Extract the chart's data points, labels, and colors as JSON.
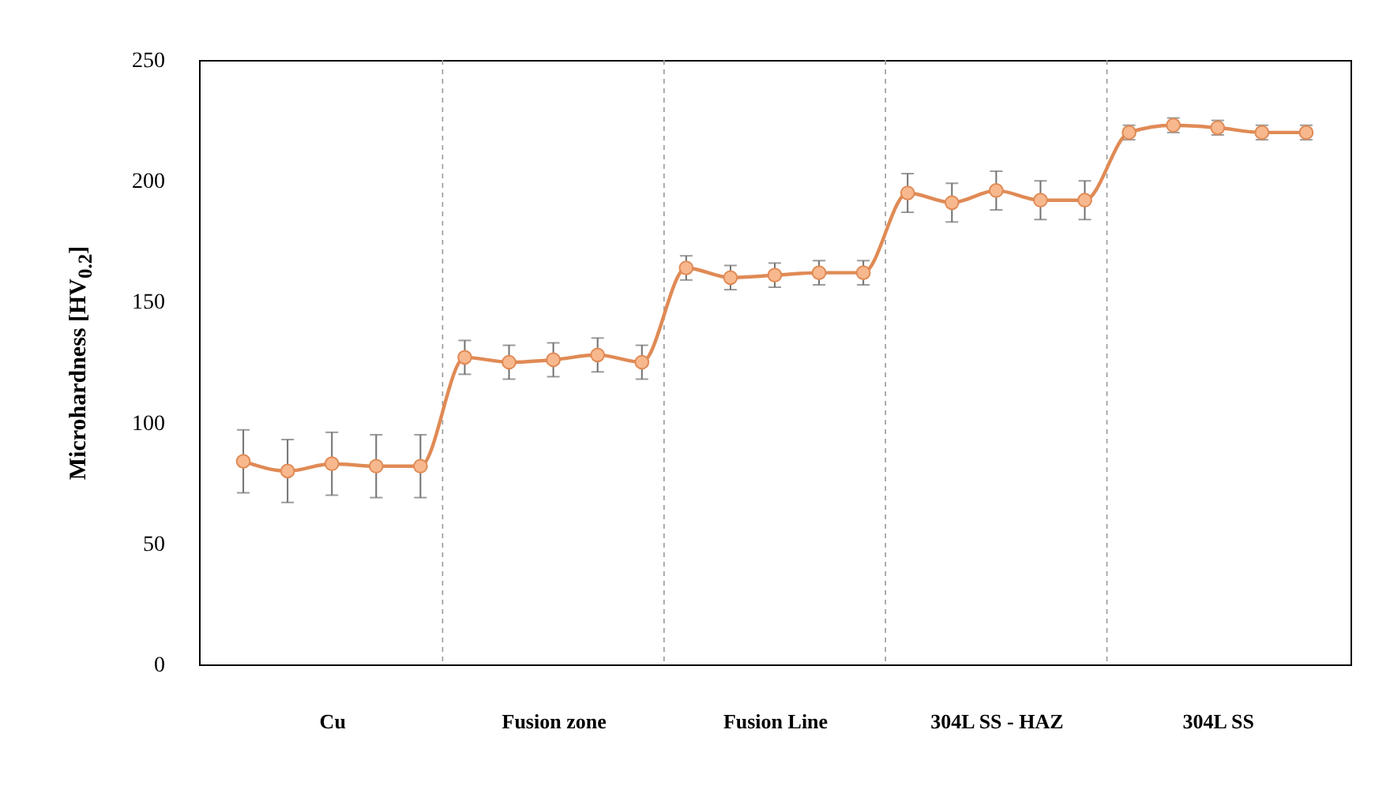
{
  "chart_data": {
    "type": "line",
    "ylabel": "Microhardness [HV$_{0.2}$]",
    "categories": [
      null,
      null,
      "Cu",
      null,
      null,
      null,
      null,
      "Fusion zone",
      null,
      null,
      null,
      null,
      "Fusion Line",
      null,
      null,
      null,
      null,
      "304L SS - HAZ",
      null,
      null,
      null,
      null,
      "304L SS",
      null,
      null
    ],
    "series": [
      {
        "color": "#e08a55",
        "values": [
          84,
          80,
          83,
          82,
          82,
          127,
          125,
          126,
          128,
          125,
          164,
          160,
          161,
          162,
          162,
          195,
          191,
          196,
          192,
          192,
          220,
          223,
          222,
          220,
          220
        ],
        "errors": [
          13,
          13,
          13,
          13,
          13,
          7,
          7,
          7,
          7,
          7,
          5,
          5,
          5,
          5,
          5,
          8,
          8,
          8,
          8,
          8,
          3,
          3,
          3,
          3,
          3
        ]
      }
    ],
    "ylim": [
      0,
      250
    ],
    "yticks": [
      0,
      50,
      100,
      150,
      200,
      250
    ],
    "grid": false,
    "marker": "circle",
    "line_style": "solid"
  }
}
